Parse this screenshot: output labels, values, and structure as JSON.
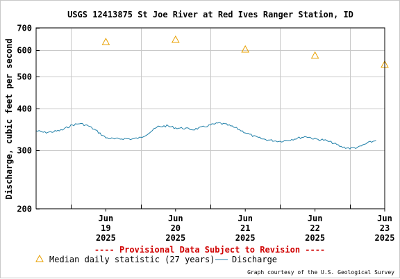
{
  "chart_data": {
    "type": "line",
    "title": "USGS 12413875 St Joe River at Red Ives Ranger Station, ID",
    "ylabel": "Discharge, cubic feet per second",
    "xlabel": "",
    "yscale": "log",
    "ylim": [
      200,
      700
    ],
    "yticks": [
      {
        "value": 200,
        "label": "200"
      },
      {
        "value": 300,
        "label": "300"
      },
      {
        "value": 400,
        "label": "400"
      },
      {
        "value": 500,
        "label": "500"
      },
      {
        "value": 600,
        "label": "600"
      },
      {
        "value": 700,
        "label": "700"
      }
    ],
    "xlim": [
      "2025-06-18 12:00",
      "2025-06-23 12:00"
    ],
    "xticks": [
      {
        "x": "2025-06-19",
        "lines": [
          "Jun",
          "19",
          "2025"
        ]
      },
      {
        "x": "2025-06-20",
        "lines": [
          "Jun",
          "20",
          "2025"
        ]
      },
      {
        "x": "2025-06-21",
        "lines": [
          "Jun",
          "21",
          "2025"
        ]
      },
      {
        "x": "2025-06-22",
        "lines": [
          "Jun",
          "22",
          "2025"
        ]
      },
      {
        "x": "2025-06-23",
        "lines": [
          "Jun",
          "23",
          "2025"
        ]
      }
    ],
    "grid": true,
    "series": [
      {
        "name": "Median daily statistic (27 years)",
        "kind": "marker-triangle",
        "color": "#e8a000",
        "x": [
          "2025-06-19",
          "2025-06-20",
          "2025-06-21",
          "2025-06-22",
          "2025-06-23"
        ],
        "values": [
          635,
          645,
          603,
          578,
          543
        ]
      },
      {
        "name": "Discharge",
        "kind": "line",
        "color": "#1f7fa8",
        "x": [
          "2025-06-18 12:00",
          "2025-06-18 15:00",
          "2025-06-18 18:00",
          "2025-06-18 21:00",
          "2025-06-19 00:00",
          "2025-06-19 03:00",
          "2025-06-19 06:00",
          "2025-06-19 09:00",
          "2025-06-19 12:00",
          "2025-06-19 15:00",
          "2025-06-19 18:00",
          "2025-06-19 21:00",
          "2025-06-20 00:00",
          "2025-06-20 03:00",
          "2025-06-20 06:00",
          "2025-06-20 09:00",
          "2025-06-20 12:00",
          "2025-06-20 15:00",
          "2025-06-20 18:00",
          "2025-06-20 21:00",
          "2025-06-21 00:00",
          "2025-06-21 03:00",
          "2025-06-21 06:00",
          "2025-06-21 09:00",
          "2025-06-21 12:00",
          "2025-06-21 15:00",
          "2025-06-21 18:00",
          "2025-06-21 21:00",
          "2025-06-22 00:00",
          "2025-06-22 03:00",
          "2025-06-22 06:00",
          "2025-06-22 09:00",
          "2025-06-22 12:00",
          "2025-06-22 15:00",
          "2025-06-22 18:00",
          "2025-06-22 21:00",
          "2025-06-23 00:00",
          "2025-06-23 03:00",
          "2025-06-23 06:00",
          "2025-06-23 09:00"
        ],
        "values": [
          343,
          339,
          341,
          345,
          356,
          361,
          355,
          342,
          327,
          324,
          325,
          324,
          327,
          339,
          353,
          355,
          350,
          349,
          346,
          351,
          357,
          362,
          357,
          349,
          339,
          330,
          324,
          321,
          319,
          322,
          326,
          330,
          324,
          322,
          316,
          307,
          304,
          306,
          315,
          321
        ]
      }
    ],
    "legend_position": "bottom"
  },
  "banner": "---- Provisional Data Subject to Revision ----",
  "credit": "Graph courtesy of the U.S. Geological Survey"
}
